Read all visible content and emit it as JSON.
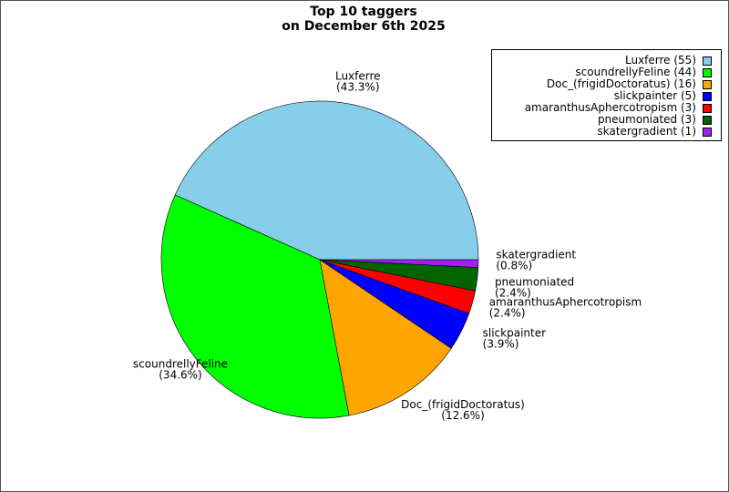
{
  "chart_data": {
    "type": "pie",
    "title": [
      "Top 10 taggers",
      "on December 6th 2025"
    ],
    "slices": [
      {
        "name": "Luxferre",
        "value": 55,
        "percent": "43.3%",
        "color": "#87ceeb",
        "legend": "Luxferre (55)"
      },
      {
        "name": "scoundrellyFeline",
        "value": 44,
        "percent": "34.6%",
        "color": "#00ff00",
        "legend": "scoundrellyFeline (44)"
      },
      {
        "name": "Doc_(frigidDoctoratus)",
        "value": 16,
        "percent": "12.6%",
        "color": "#ffa500",
        "legend": "Doc_(frigidDoctoratus) (16)"
      },
      {
        "name": "slickpainter",
        "value": 5,
        "percent": "3.9%",
        "color": "#0000ff",
        "legend": "slickpainter (5)"
      },
      {
        "name": "amaranthusAphercotropism",
        "value": 3,
        "percent": "2.4%",
        "color": "#ff0000",
        "legend": "amaranthusAphercotropism (3)"
      },
      {
        "name": "pneumoniated",
        "value": 3,
        "percent": "2.4%",
        "color": "#006400",
        "legend": "pneumoniated (3)"
      },
      {
        "name": "skatergradient",
        "value": 1,
        "percent": "0.8%",
        "color": "#a020f0",
        "legend": "skatergradient (1)"
      }
    ],
    "start_angle_deg": 0,
    "direction": "counterclockwise",
    "legend_position": "top-right"
  }
}
